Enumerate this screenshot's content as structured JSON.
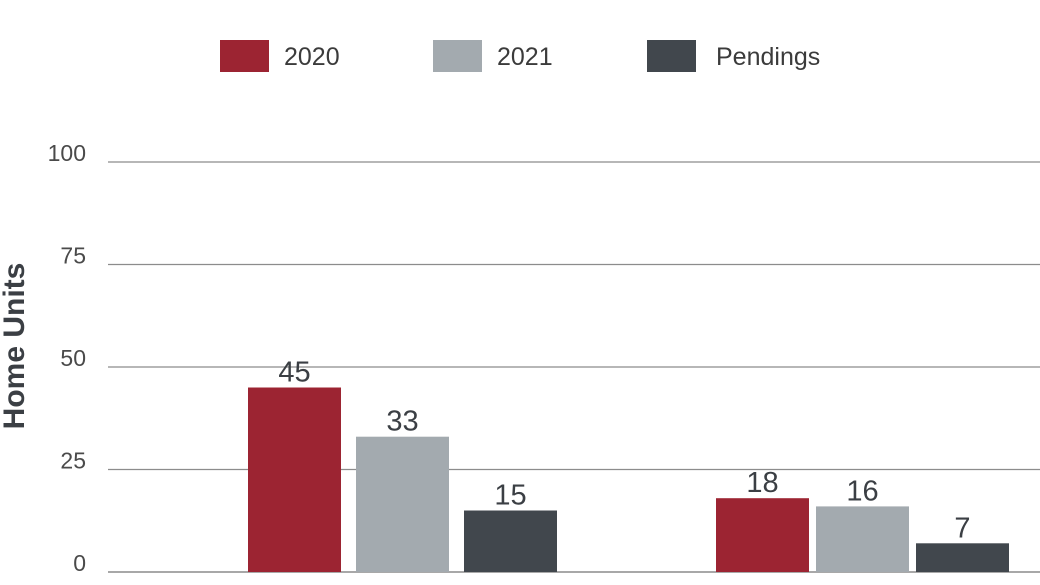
{
  "chart_data": {
    "type": "bar",
    "categories": [
      "",
      ""
    ],
    "series": [
      {
        "name": "2020",
        "color": "#9c2432",
        "values": [
          45,
          18
        ]
      },
      {
        "name": "2021",
        "color": "#a3aaaf",
        "values": [
          33,
          16
        ]
      },
      {
        "name": "Pendings",
        "color": "#41474d",
        "values": [
          15,
          7
        ]
      }
    ],
    "title": "",
    "xlabel": "",
    "ylabel": "Home Units",
    "ylim": [
      0,
      100
    ],
    "yticks": [
      0,
      25,
      50,
      75,
      100
    ],
    "grid": true,
    "legend_position": "top-center",
    "data_labels": true
  }
}
